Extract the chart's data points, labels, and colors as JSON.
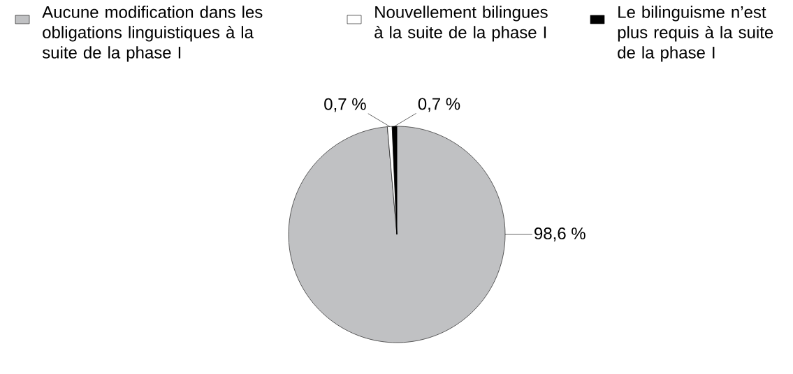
{
  "chart_data": {
    "type": "pie",
    "categories": [
      "Aucune modification dans les obligations linguistiques à la suite de la phase I",
      "Nouvellement bilingues à la suite de la phase I",
      "Le bilinguisme n’est plus requis à la suite de la phase I"
    ],
    "values": [
      98.6,
      0.7,
      0.7
    ],
    "colors": [
      "#c0c1c3",
      "#ffffff",
      "#000000"
    ],
    "value_labels": [
      "98,6 %",
      "0,7 %",
      "0,7 %"
    ],
    "legend": "top"
  }
}
